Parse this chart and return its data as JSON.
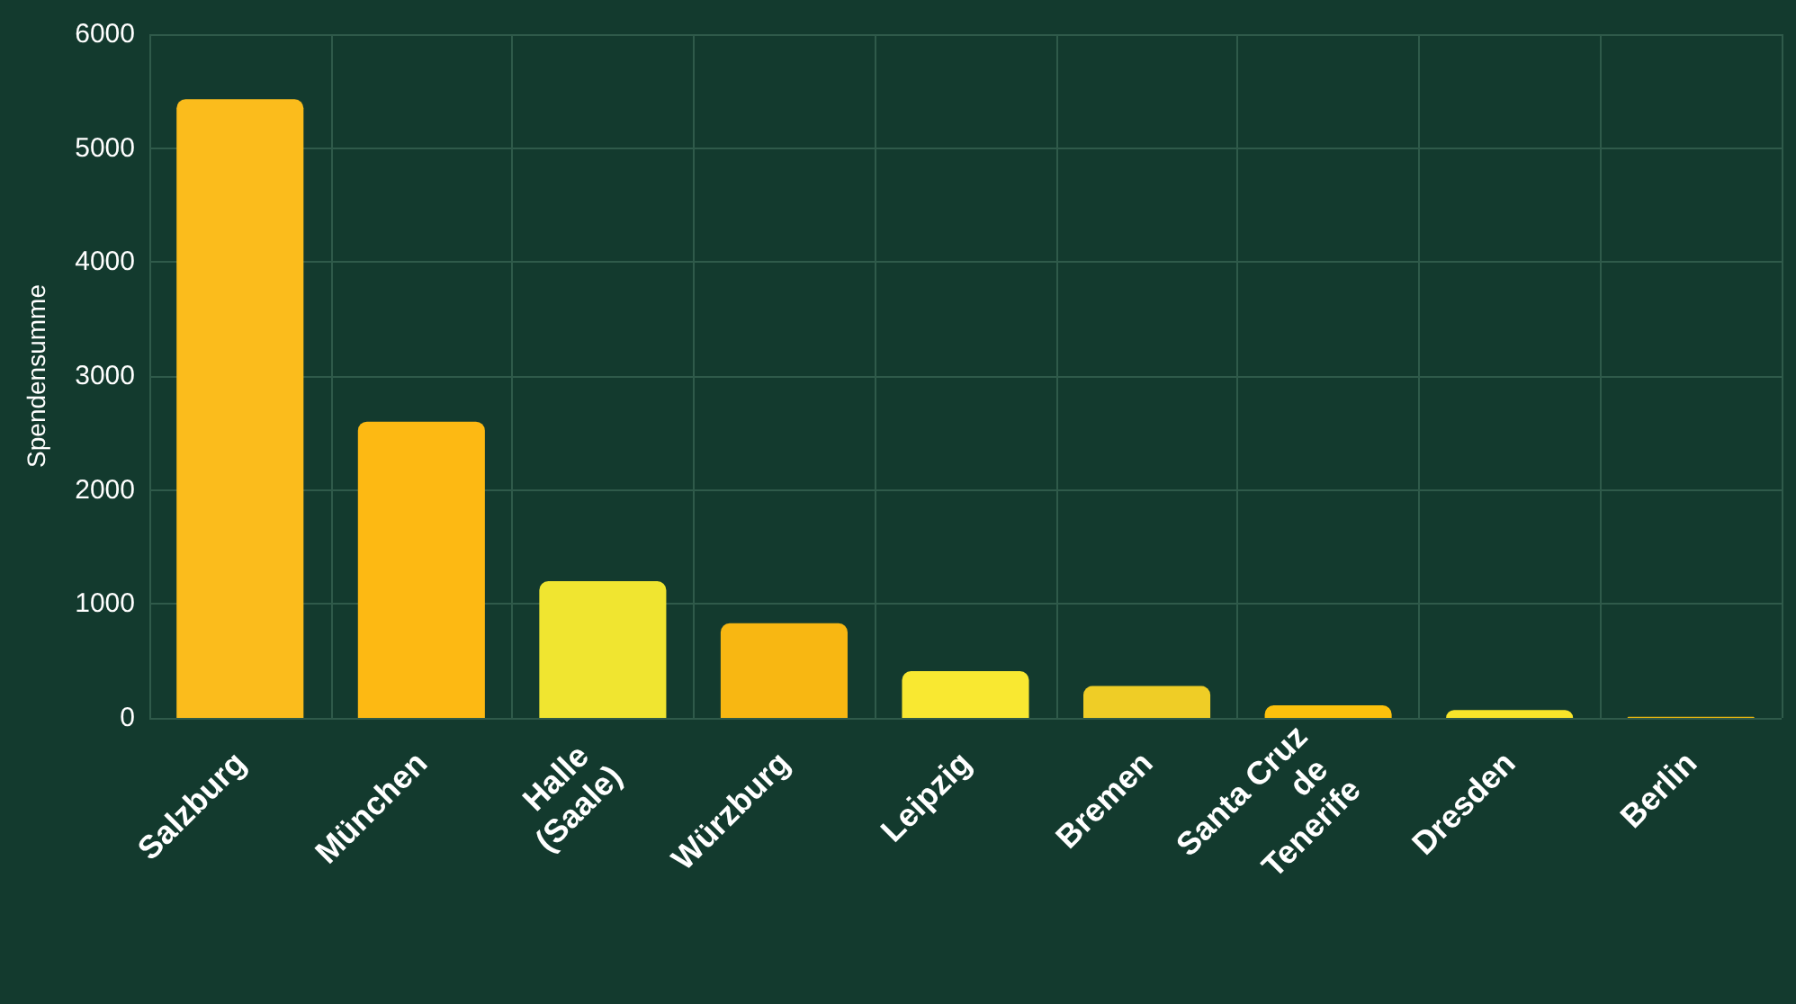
{
  "chart_data": {
    "type": "bar",
    "ylabel": "Spendensumme",
    "categories": [
      "Salzburg",
      "München",
      "Halle (Saale)",
      "Würzburg",
      "Leipzig",
      "Bremen",
      "Santa Cruz de Tenerife",
      "Dresden",
      "Berlin"
    ],
    "values": [
      5430,
      2600,
      1200,
      830,
      410,
      280,
      110,
      70,
      10
    ],
    "colors": [
      "#fbbc1c",
      "#fdb913",
      "#f0e530",
      "#f8b712",
      "#f9e831",
      "#efcd26",
      "#fcc10c",
      "#f8e52a",
      "#e7b60f"
    ],
    "ylim": [
      0,
      6000
    ],
    "yticks": [
      0,
      1000,
      2000,
      3000,
      4000,
      5000,
      6000
    ],
    "grid": true
  }
}
